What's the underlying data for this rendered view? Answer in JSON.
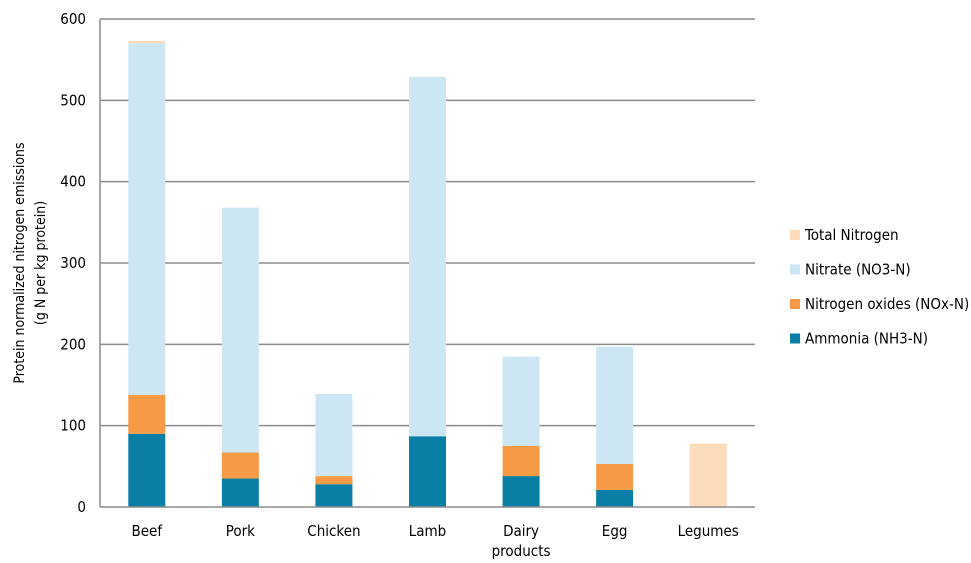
{
  "chart_data": {
    "type": "bar",
    "stacked": true,
    "title": "",
    "ylabel_lines": [
      "Protein normalized nitrogen emissions",
      "(g N per kg protein)"
    ],
    "ylim": [
      0,
      600
    ],
    "yticks": [
      0,
      100,
      200,
      300,
      400,
      500,
      600
    ],
    "grid": true,
    "legend_position": "right",
    "categories": [
      [
        "Beef"
      ],
      [
        "Pork"
      ],
      [
        "Chicken"
      ],
      [
        "Lamb"
      ],
      [
        "Dairy",
        "products"
      ],
      [
        "Egg"
      ],
      [
        "Legumes"
      ]
    ],
    "series": [
      {
        "name": "Ammonia (NH3-N)",
        "color": "#0a7ea4",
        "values": [
          90,
          35,
          28,
          87,
          38,
          21,
          0
        ]
      },
      {
        "name": "Nitrogen oxides (NOx-N)",
        "color": "#f79a46",
        "values": [
          48,
          32,
          10,
          0,
          37,
          32,
          0
        ]
      },
      {
        "name": "Nitrate (NO3-N)",
        "color": "#cce6f4",
        "values": [
          432,
          301,
          101,
          442,
          110,
          144,
          0
        ]
      },
      {
        "name": "Total Nitrogen",
        "color": "#fddcbb",
        "values": [
          3,
          0,
          0,
          0,
          0,
          0,
          78
        ]
      }
    ],
    "legend_order": [
      "Total Nitrogen",
      "Nitrate (NO3-N)",
      "Nitrogen oxides (NOx-N)",
      "Ammonia (NH3-N)"
    ]
  }
}
